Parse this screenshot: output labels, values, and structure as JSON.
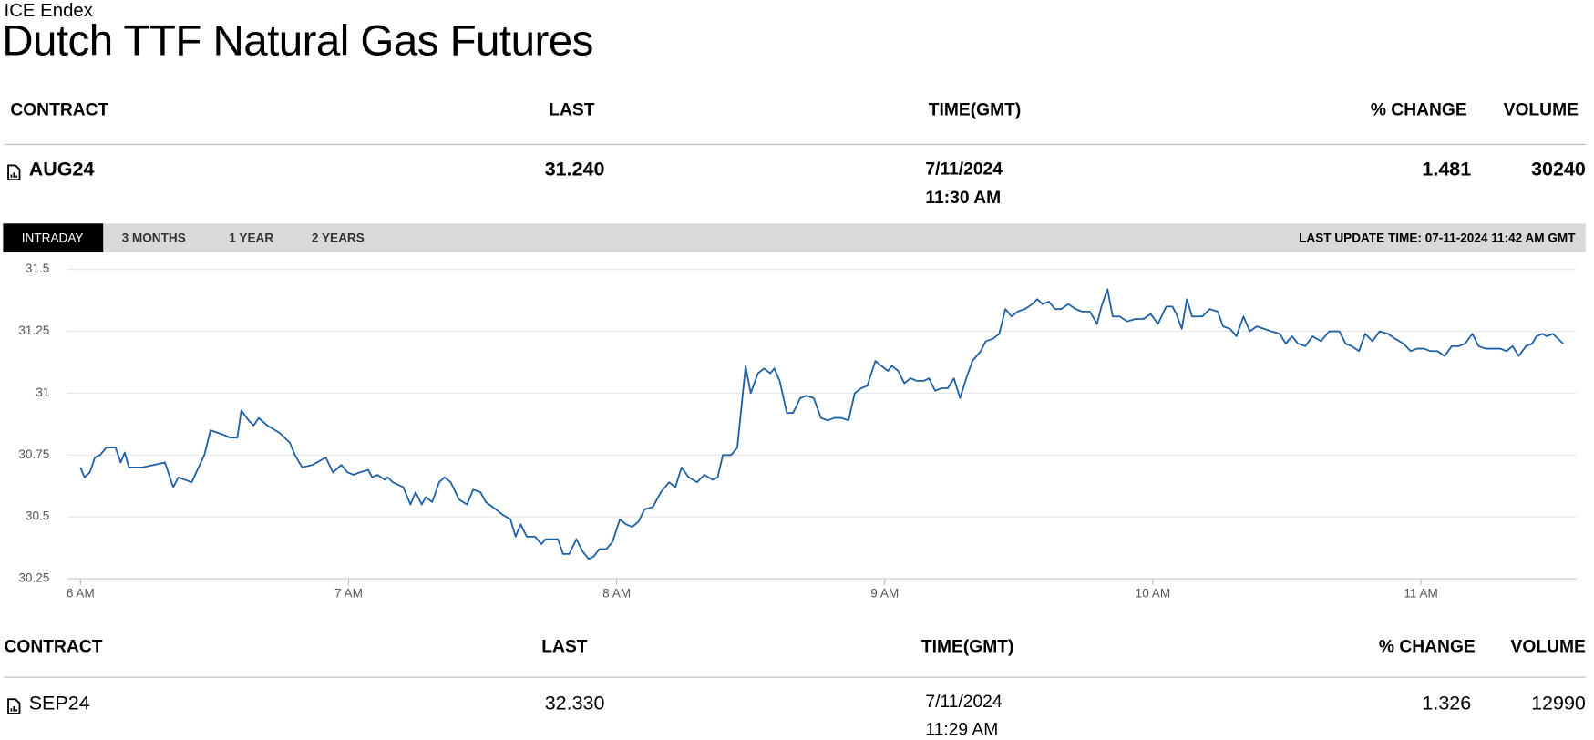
{
  "header": {
    "exchange": "ICE Endex",
    "title": "Dutch TTF Natural Gas Futures"
  },
  "table": {
    "columns": [
      "CONTRACT",
      "LAST",
      "TIME(GMT)",
      "% CHANGE",
      "VOLUME"
    ],
    "row": {
      "contract": "AUG24",
      "last": "31.240",
      "date": "7/11/2024",
      "time": "11:30 AM",
      "change": "1.481",
      "volume": "30240"
    }
  },
  "tabs": [
    "INTRADAY",
    "3 MONTHS",
    "1 YEAR",
    "2 YEARS"
  ],
  "last_update": "LAST UPDATE TIME: 07-11-2024 11:42 AM GMT",
  "chart_data": {
    "type": "line",
    "color": "#1f5fa6",
    "grid": true,
    "xlim": [
      5.95,
      11.58
    ],
    "ylim": [
      30.25,
      31.5
    ],
    "xticks": [
      {
        "value": 6,
        "label": "6 AM"
      },
      {
        "value": 7,
        "label": "7 AM"
      },
      {
        "value": 8,
        "label": "8 AM"
      },
      {
        "value": 9,
        "label": "9 AM"
      },
      {
        "value": 10,
        "label": "10 AM"
      },
      {
        "value": 11,
        "label": "11 AM"
      }
    ],
    "yticks": [
      30.25,
      30.5,
      30.75,
      31,
      31.25,
      31.5
    ],
    "x": [
      6.0,
      6.015,
      6.035,
      6.054,
      6.073,
      6.096,
      6.131,
      6.15,
      6.165,
      6.181,
      6.231,
      6.315,
      6.346,
      6.365,
      6.415,
      6.462,
      6.485,
      6.512,
      6.538,
      6.558,
      6.585,
      6.6,
      6.627,
      6.646,
      6.665,
      6.696,
      6.742,
      6.781,
      6.8,
      6.827,
      6.865,
      6.915,
      6.942,
      6.973,
      6.996,
      7.019,
      7.042,
      7.073,
      7.088,
      7.108,
      7.135,
      7.146,
      7.165,
      7.204,
      7.231,
      7.25,
      7.273,
      7.288,
      7.312,
      7.338,
      7.358,
      7.381,
      7.412,
      7.442,
      7.465,
      7.492,
      7.512,
      7.55,
      7.573,
      7.604,
      7.623,
      7.642,
      7.665,
      7.696,
      7.719,
      7.735,
      7.781,
      7.8,
      7.823,
      7.85,
      7.873,
      7.896,
      7.915,
      7.935,
      7.962,
      7.985,
      8.012,
      8.035,
      8.058,
      8.081,
      8.104,
      8.135,
      8.165,
      8.196,
      8.219,
      8.242,
      8.269,
      8.3,
      8.327,
      8.358,
      8.377,
      8.396,
      8.427,
      8.45,
      8.481,
      8.5,
      8.527,
      8.55,
      8.573,
      8.588,
      8.608,
      8.635,
      8.658,
      8.685,
      8.708,
      8.735,
      8.762,
      8.788,
      8.812,
      8.838,
      8.865,
      8.888,
      8.912,
      8.935,
      8.965,
      8.988,
      9.012,
      9.027,
      9.05,
      9.073,
      9.096,
      9.119,
      9.146,
      9.165,
      9.188,
      9.212,
      9.235,
      9.258,
      9.281,
      9.304,
      9.327,
      9.358,
      9.377,
      9.404,
      9.427,
      9.45,
      9.473,
      9.496,
      9.523,
      9.55,
      9.569,
      9.588,
      9.612,
      9.635,
      9.658,
      9.685,
      9.712,
      9.735,
      9.765,
      9.792,
      9.808,
      9.831,
      9.85,
      9.877,
      9.904,
      9.935,
      9.965,
      9.992,
      10.019,
      10.05,
      10.073,
      10.088,
      10.108,
      10.127,
      10.146,
      10.185,
      10.212,
      10.242,
      10.262,
      10.288,
      10.312,
      10.338,
      10.362,
      10.388,
      10.415,
      10.442,
      10.473,
      10.496,
      10.519,
      10.542,
      10.569,
      10.596,
      10.627,
      10.658,
      10.696,
      10.719,
      10.742,
      10.769,
      10.792,
      10.819,
      10.846,
      10.877,
      10.904,
      10.935,
      10.962,
      10.985,
      11.012,
      11.035,
      11.062,
      11.088,
      11.115,
      11.142,
      11.165,
      11.192,
      11.215,
      11.242,
      11.269,
      11.296,
      11.319,
      11.342,
      11.365,
      11.392,
      11.415,
      11.431,
      11.454,
      11.469,
      11.492,
      11.531
    ],
    "values": [
      30.7,
      30.66,
      30.68,
      30.74,
      30.75,
      30.78,
      30.78,
      30.72,
      30.76,
      30.7,
      30.7,
      30.72,
      30.62,
      30.66,
      30.64,
      30.75,
      30.85,
      30.84,
      30.83,
      30.82,
      30.82,
      30.93,
      30.89,
      30.87,
      30.9,
      30.87,
      30.84,
      30.8,
      30.75,
      30.7,
      30.71,
      30.74,
      30.68,
      30.71,
      30.68,
      30.67,
      30.68,
      30.69,
      30.66,
      30.67,
      30.65,
      30.66,
      30.64,
      30.62,
      30.55,
      30.6,
      30.55,
      30.58,
      30.56,
      30.64,
      30.66,
      30.64,
      30.57,
      30.55,
      30.61,
      30.6,
      30.56,
      30.53,
      30.51,
      30.49,
      30.42,
      30.47,
      30.42,
      30.42,
      30.39,
      30.41,
      30.41,
      30.35,
      30.35,
      30.41,
      30.36,
      30.33,
      30.34,
      30.37,
      30.37,
      30.4,
      30.49,
      30.47,
      30.46,
      30.48,
      30.53,
      30.54,
      30.6,
      30.64,
      30.62,
      30.7,
      30.66,
      30.64,
      30.67,
      30.65,
      30.66,
      30.75,
      30.75,
      30.78,
      31.11,
      31.0,
      31.08,
      31.1,
      31.08,
      31.1,
      31.05,
      30.92,
      30.92,
      30.98,
      30.99,
      30.98,
      30.9,
      30.89,
      30.9,
      30.9,
      30.89,
      31.0,
      31.02,
      31.03,
      31.13,
      31.11,
      31.09,
      31.11,
      31.09,
      31.04,
      31.06,
      31.05,
      31.05,
      31.06,
      31.01,
      31.02,
      31.02,
      31.06,
      30.98,
      31.06,
      31.13,
      31.17,
      31.21,
      31.22,
      31.24,
      31.34,
      31.31,
      31.33,
      31.34,
      31.36,
      31.38,
      31.36,
      31.37,
      31.34,
      31.34,
      31.36,
      31.34,
      31.33,
      31.33,
      31.28,
      31.35,
      31.42,
      31.31,
      31.31,
      31.29,
      31.3,
      31.3,
      31.32,
      31.28,
      31.35,
      31.35,
      31.32,
      31.26,
      31.38,
      31.31,
      31.31,
      31.34,
      31.33,
      31.27,
      31.26,
      31.23,
      31.31,
      31.25,
      31.27,
      31.26,
      31.25,
      31.24,
      31.2,
      31.23,
      31.2,
      31.19,
      31.23,
      31.21,
      31.25,
      31.25,
      31.2,
      31.19,
      31.17,
      31.24,
      31.21,
      31.25,
      31.24,
      31.22,
      31.2,
      31.17,
      31.18,
      31.18,
      31.17,
      31.17,
      31.15,
      31.19,
      31.19,
      31.2,
      31.24,
      31.19,
      31.18,
      31.18,
      31.18,
      31.17,
      31.19,
      31.15,
      31.19,
      31.2,
      31.23,
      31.24,
      31.23,
      31.24,
      31.2
    ]
  },
  "table2": {
    "columns": [
      "CONTRACT",
      "LAST",
      "TIME(GMT)",
      "% CHANGE",
      "VOLUME"
    ],
    "row": {
      "contract": "SEP24",
      "last": "32.330",
      "date": "7/11/2024",
      "time": "11:29 AM",
      "change": "1.326",
      "volume": "12990"
    }
  }
}
